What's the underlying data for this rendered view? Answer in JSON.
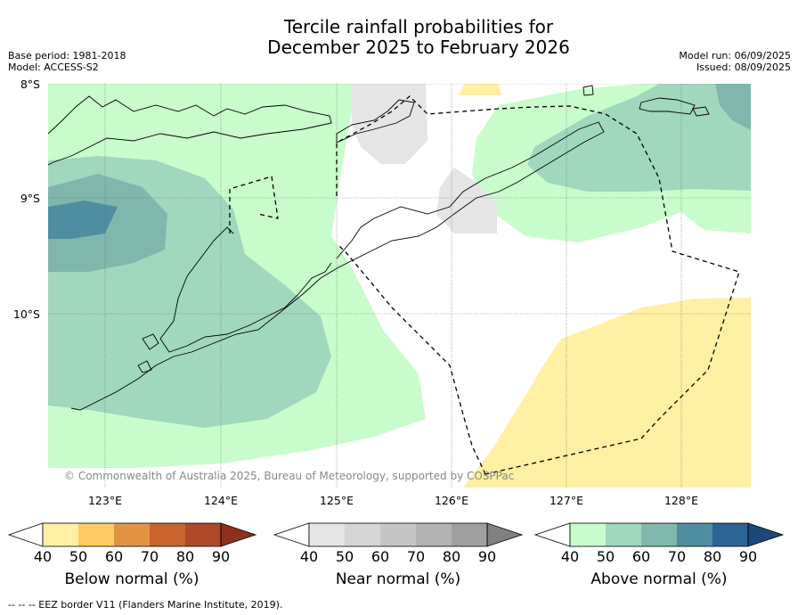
{
  "title_line1": "Tercile rainfall probabilities for",
  "title_line2": "December 2025 to February 2026",
  "base_period": "Base period: 1981-2018",
  "model": "Model: ACCESS-S2",
  "model_run": "Model run: 06/09/2025",
  "issued": "Issued: 08/09/2025",
  "map": {
    "lat_labels": [
      "8°S",
      "9°S",
      "10°S"
    ],
    "lon_labels": [
      "123°E",
      "124°E",
      "125°E",
      "126°E",
      "127°E",
      "128°E"
    ],
    "copyright": "© Commonwealth of Australia 2025, Bureau of Meteorology, supported by COSPPac"
  },
  "colorbars": {
    "below": {
      "label": "Below normal (%)",
      "ticks": [
        "40",
        "50",
        "60",
        "70",
        "80",
        "90"
      ],
      "colors": [
        "#ffffff",
        "#fff0a3",
        "#fecb65",
        "#e29445",
        "#c9642e",
        "#ae4a28",
        "#8f2f1c"
      ]
    },
    "near": {
      "label": "Near normal (%)",
      "ticks": [
        "40",
        "50",
        "60",
        "70",
        "80",
        "90"
      ],
      "colors": [
        "#ffffff",
        "#e5e5e5",
        "#d6d6d6",
        "#c6c6c6",
        "#b3b3b3",
        "#9f9f9f",
        "#808080"
      ]
    },
    "above": {
      "label": "Above normal (%)",
      "ticks": [
        "40",
        "50",
        "60",
        "70",
        "80",
        "90"
      ],
      "colors": [
        "#ffffff",
        "#c8fccb",
        "#a0d7bd",
        "#80b7ad",
        "#4f8ea1",
        "#2c6496",
        "#1b4878"
      ]
    }
  },
  "footnote": "-- -- -- EEZ border V11 (Flanders Marine Institute, 2019)."
}
